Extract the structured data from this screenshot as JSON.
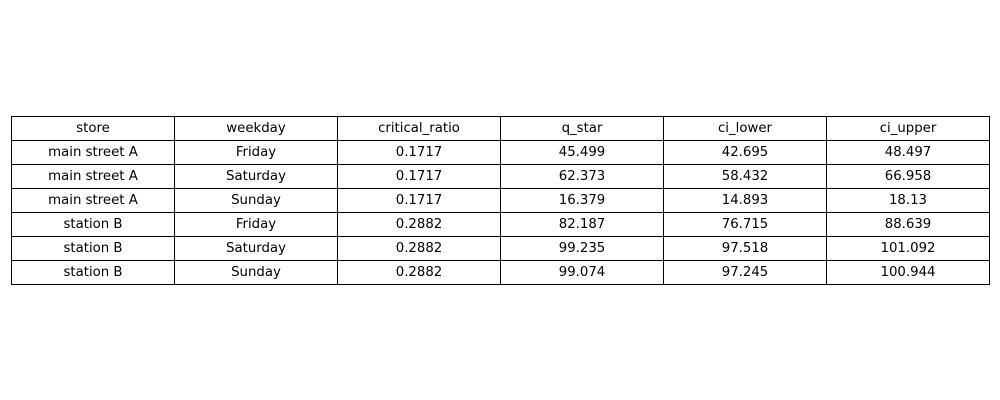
{
  "chart_data": {
    "type": "table",
    "columns": [
      "store",
      "weekday",
      "critical_ratio",
      "q_star",
      "ci_lower",
      "ci_upper"
    ],
    "rows": [
      [
        "main street A",
        "Friday",
        "0.1717",
        "45.499",
        "42.695",
        "48.497"
      ],
      [
        "main street A",
        "Saturday",
        "0.1717",
        "62.373",
        "58.432",
        "66.958"
      ],
      [
        "main street A",
        "Sunday",
        "0.1717",
        "16.379",
        "14.893",
        "18.13"
      ],
      [
        "station B",
        "Friday",
        "0.2882",
        "82.187",
        "76.715",
        "88.639"
      ],
      [
        "station B",
        "Saturday",
        "0.2882",
        "99.235",
        "97.518",
        "101.092"
      ],
      [
        "station B",
        "Sunday",
        "0.2882",
        "99.074",
        "97.245",
        "100.944"
      ]
    ]
  },
  "colors": {
    "background": "#ffffff",
    "border": "#000000",
    "text": "#000000"
  }
}
